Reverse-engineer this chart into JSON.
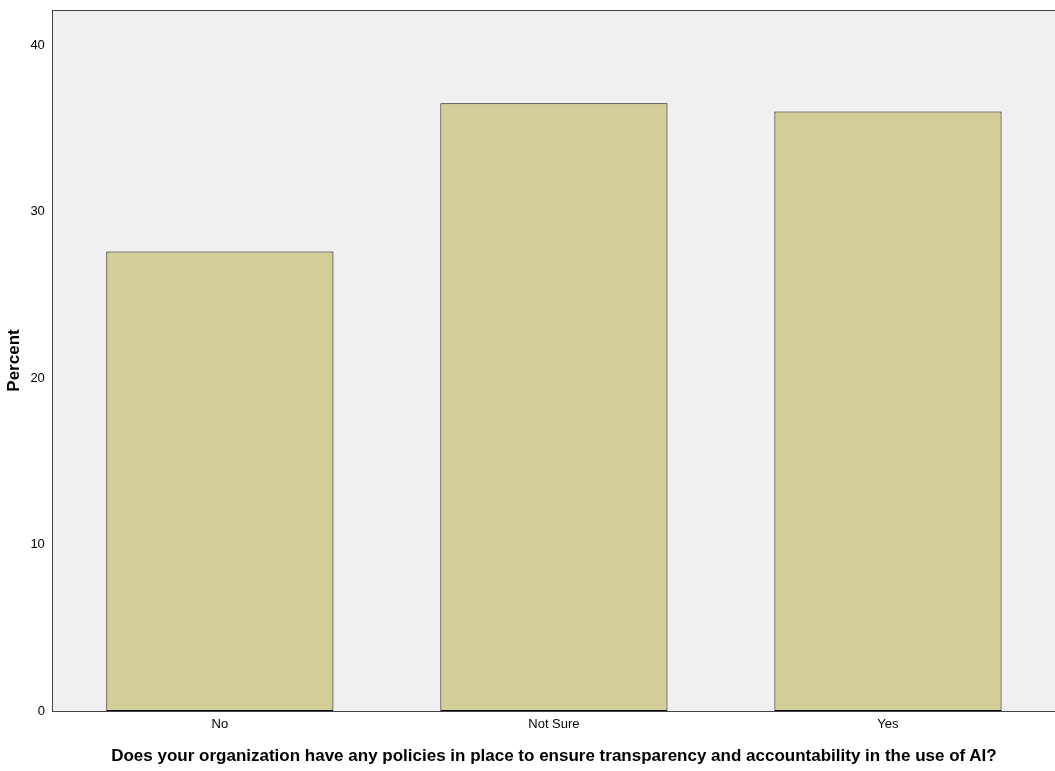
{
  "chart_data": {
    "type": "bar",
    "xlabel": "Does your organization have any policies in place to ensure transparency and accountability in the use of AI?",
    "ylabel": "Percent",
    "categories": [
      "No",
      "Not Sure",
      "Yes"
    ],
    "values": [
      27.6,
      36.5,
      36.0
    ],
    "color": "#d3ce97",
    "ylim": [
      0,
      42.1
    ],
    "yticks": [
      0,
      10,
      20,
      30,
      40
    ],
    "grid": false,
    "legend": false
  }
}
